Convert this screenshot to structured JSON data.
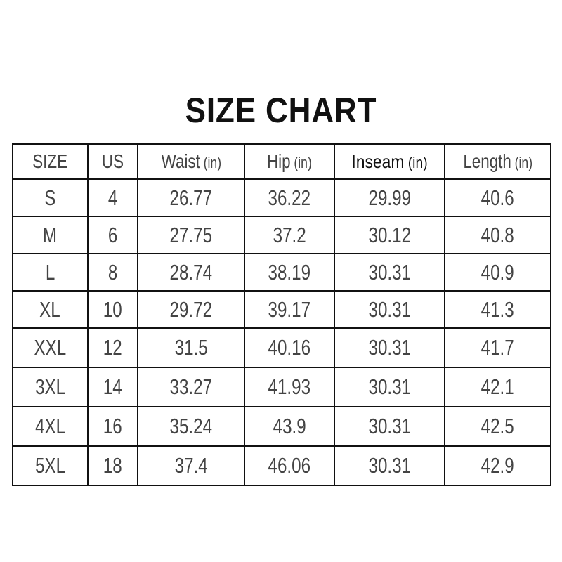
{
  "title": "SIZE CHART",
  "table": {
    "headers": [
      {
        "label": "SIZE",
        "unit": ""
      },
      {
        "label": "US",
        "unit": ""
      },
      {
        "label": "Waist",
        "unit": "(in)"
      },
      {
        "label": "Hip",
        "unit": "(in)"
      },
      {
        "label": "Inseam",
        "unit": "(in)"
      },
      {
        "label": "Length",
        "unit": "(in)"
      }
    ],
    "rows": [
      [
        "S",
        "4",
        "26.77",
        "36.22",
        "29.99",
        "40.6"
      ],
      [
        "M",
        "6",
        "27.75",
        "37.2",
        "30.12",
        "40.8"
      ],
      [
        "L",
        "8",
        "28.74",
        "38.19",
        "30.31",
        "40.9"
      ],
      [
        "XL",
        "10",
        "29.72",
        "39.17",
        "30.31",
        "41.3"
      ],
      [
        "XXL",
        "12",
        "31.5",
        "40.16",
        "30.31",
        "41.7"
      ],
      [
        "3XL",
        "14",
        "33.27",
        "41.93",
        "30.31",
        "42.1"
      ],
      [
        "4XL",
        "16",
        "35.24",
        "43.9",
        "30.31",
        "42.5"
      ],
      [
        "5XL",
        "18",
        "37.4",
        "46.06",
        "30.31",
        "42.9"
      ]
    ]
  }
}
